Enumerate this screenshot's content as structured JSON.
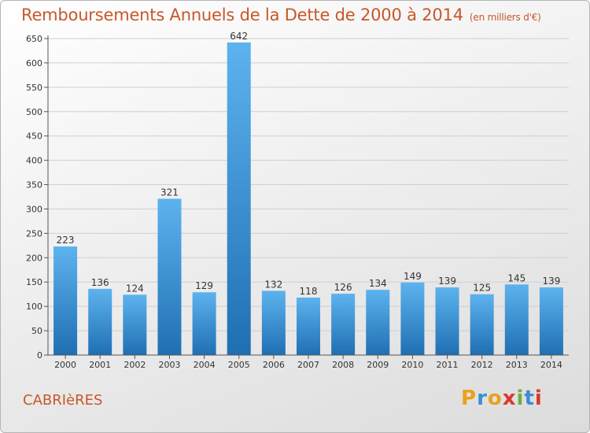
{
  "header": {
    "title": "Remboursements Annuels de la Dette de 2000 à 2014",
    "subtitle": "(en milliers d'€)"
  },
  "footer": {
    "commune": "CABRIèRES",
    "logo_text": "Proxiti",
    "logo_colors": [
      "#e8a21b",
      "#3b8fd0",
      "#e8a21b",
      "#d8392b",
      "#6fae3c",
      "#3b8fd0",
      "#d8392b"
    ]
  },
  "chart_data": {
    "type": "bar",
    "categories": [
      "2000",
      "2001",
      "2002",
      "2003",
      "2004",
      "2005",
      "2006",
      "2007",
      "2008",
      "2009",
      "2010",
      "2011",
      "2012",
      "2013",
      "2014"
    ],
    "values": [
      223,
      136,
      124,
      321,
      129,
      642,
      132,
      118,
      126,
      134,
      149,
      139,
      125,
      145,
      139
    ],
    "title": "Remboursements Annuels de la Dette de 2000 à 2014",
    "xlabel": "",
    "ylabel": "",
    "ylim": [
      0,
      650
    ],
    "yticks": [
      0,
      50,
      100,
      150,
      200,
      250,
      300,
      350,
      400,
      450,
      500,
      550,
      600,
      650
    ],
    "grid": true,
    "bar_color": "#3a96dc"
  }
}
